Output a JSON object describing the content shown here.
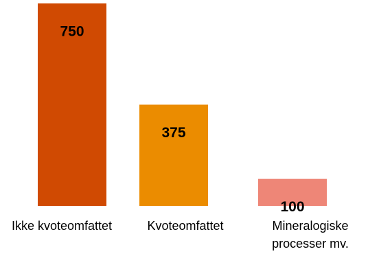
{
  "chart_data": {
    "type": "bar",
    "categories": [
      "Ikke kvoteomfattet",
      "Kvoteomfattet",
      "Mineralogiske processer mv."
    ],
    "values": [
      750,
      375,
      100
    ],
    "colors": [
      "#d04a02",
      "#eb8c00",
      "#ee8677"
    ],
    "ylim": [
      0,
      750
    ]
  }
}
